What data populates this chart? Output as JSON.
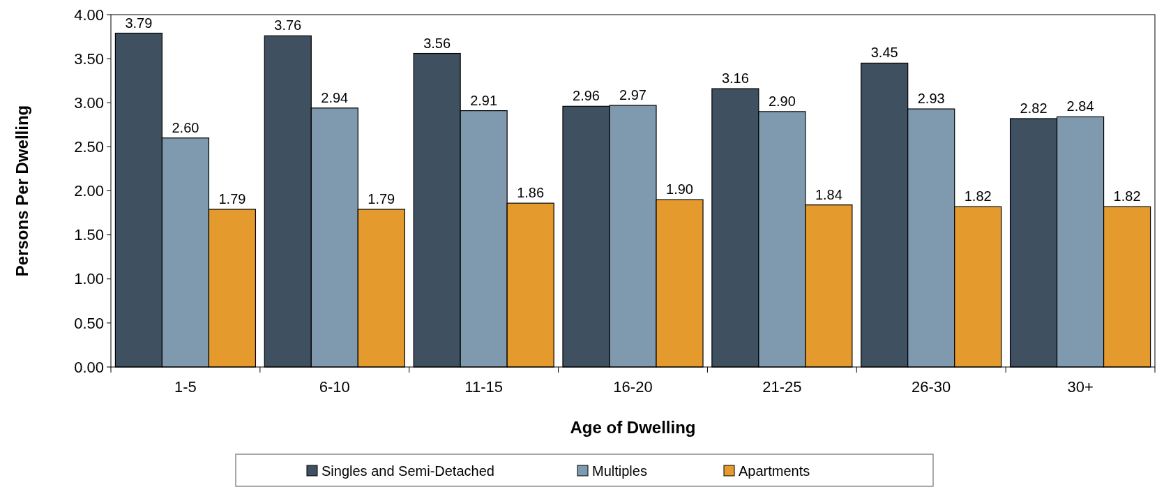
{
  "chart_data": {
    "type": "bar",
    "xlabel": "Age of Dwelling",
    "ylabel": "Persons Per Dwelling",
    "categories": [
      "1-5",
      "6-10",
      "11-15",
      "16-20",
      "21-25",
      "26-30",
      "30+"
    ],
    "series": [
      {
        "name": "Singles and Semi-Detached",
        "color": "#3f5060",
        "values": [
          3.79,
          3.76,
          3.56,
          2.96,
          3.16,
          3.45,
          2.82
        ],
        "value_labels": [
          "3.79",
          "3.76",
          "3.56",
          "2.96",
          "3.16",
          "3.45",
          "2.82"
        ]
      },
      {
        "name": "Multiples",
        "color": "#7f9aae",
        "values": [
          2.6,
          2.94,
          2.91,
          2.97,
          2.9,
          2.93,
          2.84
        ],
        "value_labels": [
          "2.60",
          "2.94",
          "2.91",
          "2.97",
          "2.90",
          "2.93",
          "2.84"
        ]
      },
      {
        "name": "Apartments",
        "color": "#e49a2c",
        "values": [
          1.79,
          1.79,
          1.86,
          1.9,
          1.84,
          1.82,
          1.82
        ],
        "value_labels": [
          "1.79",
          "1.79",
          "1.86",
          "1.90",
          "1.84",
          "1.82",
          "1.82"
        ]
      }
    ],
    "ylim": [
      0,
      4
    ],
    "yticks": [
      {
        "value": 0,
        "label": "0.00"
      },
      {
        "value": 0.5,
        "label": "0.50"
      },
      {
        "value": 1,
        "label": "1.00"
      },
      {
        "value": 1.5,
        "label": "1.50"
      },
      {
        "value": 2,
        "label": "2.00"
      },
      {
        "value": 2.5,
        "label": "2.50"
      },
      {
        "value": 3,
        "label": "3.00"
      },
      {
        "value": 3.5,
        "label": "3.50"
      },
      {
        "value": 4,
        "label": "4.00"
      }
    ],
    "grid": false,
    "legend": "bottom"
  }
}
